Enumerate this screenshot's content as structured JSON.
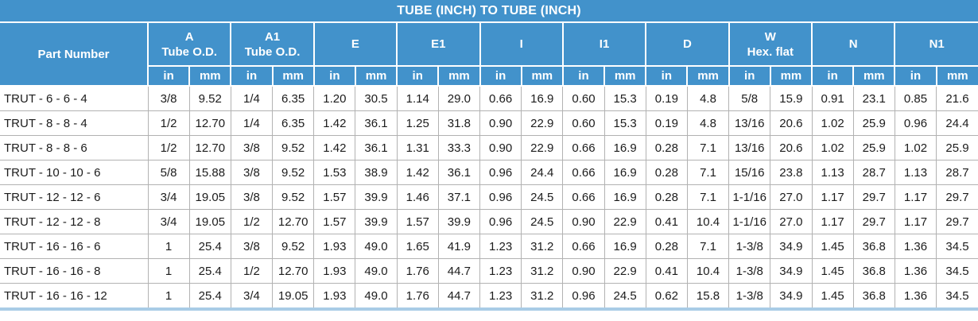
{
  "title": "TUBE (INCH) TO TUBE (INCH)",
  "colors": {
    "header_blue": "#4292cb",
    "header_text": "#ffffff",
    "body_text": "#1c1c1c",
    "grid_gray": "#b2b2b2",
    "bottom_strip_blue": "#a9cce6"
  },
  "header": {
    "part_number_label": "Part Number",
    "groups": [
      {
        "line1": "A",
        "line2": "Tube O.D."
      },
      {
        "line1": "A1",
        "line2": "Tube O.D."
      },
      {
        "line1": "E",
        "line2": ""
      },
      {
        "line1": "E1",
        "line2": ""
      },
      {
        "line1": "I",
        "line2": ""
      },
      {
        "line1": "I1",
        "line2": ""
      },
      {
        "line1": "D",
        "line2": ""
      },
      {
        "line1": "W",
        "line2": "Hex. flat"
      },
      {
        "line1": "N",
        "line2": ""
      },
      {
        "line1": "N1",
        "line2": ""
      }
    ],
    "units": [
      "in",
      "mm"
    ]
  },
  "rows": [
    {
      "part_number": "TRUT - 6 - 6 - 4",
      "values": [
        "3/8",
        "9.52",
        "1/4",
        "6.35",
        "1.20",
        "30.5",
        "1.14",
        "29.0",
        "0.66",
        "16.9",
        "0.60",
        "15.3",
        "0.19",
        "4.8",
        "5/8",
        "15.9",
        "0.91",
        "23.1",
        "0.85",
        "21.6"
      ]
    },
    {
      "part_number": "TRUT - 8 - 8 - 4",
      "values": [
        "1/2",
        "12.70",
        "1/4",
        "6.35",
        "1.42",
        "36.1",
        "1.25",
        "31.8",
        "0.90",
        "22.9",
        "0.60",
        "15.3",
        "0.19",
        "4.8",
        "13/16",
        "20.6",
        "1.02",
        "25.9",
        "0.96",
        "24.4"
      ]
    },
    {
      "part_number": "TRUT - 8 - 8 - 6",
      "values": [
        "1/2",
        "12.70",
        "3/8",
        "9.52",
        "1.42",
        "36.1",
        "1.31",
        "33.3",
        "0.90",
        "22.9",
        "0.66",
        "16.9",
        "0.28",
        "7.1",
        "13/16",
        "20.6",
        "1.02",
        "25.9",
        "1.02",
        "25.9"
      ]
    },
    {
      "part_number": "TRUT - 10 - 10 - 6",
      "values": [
        "5/8",
        "15.88",
        "3/8",
        "9.52",
        "1.53",
        "38.9",
        "1.42",
        "36.1",
        "0.96",
        "24.4",
        "0.66",
        "16.9",
        "0.28",
        "7.1",
        "15/16",
        "23.8",
        "1.13",
        "28.7",
        "1.13",
        "28.7"
      ]
    },
    {
      "part_number": "TRUT - 12 - 12 - 6",
      "values": [
        "3/4",
        "19.05",
        "3/8",
        "9.52",
        "1.57",
        "39.9",
        "1.46",
        "37.1",
        "0.96",
        "24.5",
        "0.66",
        "16.9",
        "0.28",
        "7.1",
        "1-1/16",
        "27.0",
        "1.17",
        "29.7",
        "1.17",
        "29.7"
      ]
    },
    {
      "part_number": "TRUT - 12 - 12 - 8",
      "values": [
        "3/4",
        "19.05",
        "1/2",
        "12.70",
        "1.57",
        "39.9",
        "1.57",
        "39.9",
        "0.96",
        "24.5",
        "0.90",
        "22.9",
        "0.41",
        "10.4",
        "1-1/16",
        "27.0",
        "1.17",
        "29.7",
        "1.17",
        "29.7"
      ]
    },
    {
      "part_number": "TRUT - 16 - 16 - 6",
      "values": [
        "1",
        "25.4",
        "3/8",
        "9.52",
        "1.93",
        "49.0",
        "1.65",
        "41.9",
        "1.23",
        "31.2",
        "0.66",
        "16.9",
        "0.28",
        "7.1",
        "1-3/8",
        "34.9",
        "1.45",
        "36.8",
        "1.36",
        "34.5"
      ]
    },
    {
      "part_number": "TRUT - 16 - 16 - 8",
      "values": [
        "1",
        "25.4",
        "1/2",
        "12.70",
        "1.93",
        "49.0",
        "1.76",
        "44.7",
        "1.23",
        "31.2",
        "0.90",
        "22.9",
        "0.41",
        "10.4",
        "1-3/8",
        "34.9",
        "1.45",
        "36.8",
        "1.36",
        "34.5"
      ]
    },
    {
      "part_number": "TRUT - 16 - 16 - 12",
      "values": [
        "1",
        "25.4",
        "3/4",
        "19.05",
        "1.93",
        "49.0",
        "1.76",
        "44.7",
        "1.23",
        "31.2",
        "0.96",
        "24.5",
        "0.62",
        "15.8",
        "1-3/8",
        "34.9",
        "1.45",
        "36.8",
        "1.36",
        "34.5"
      ]
    }
  ]
}
